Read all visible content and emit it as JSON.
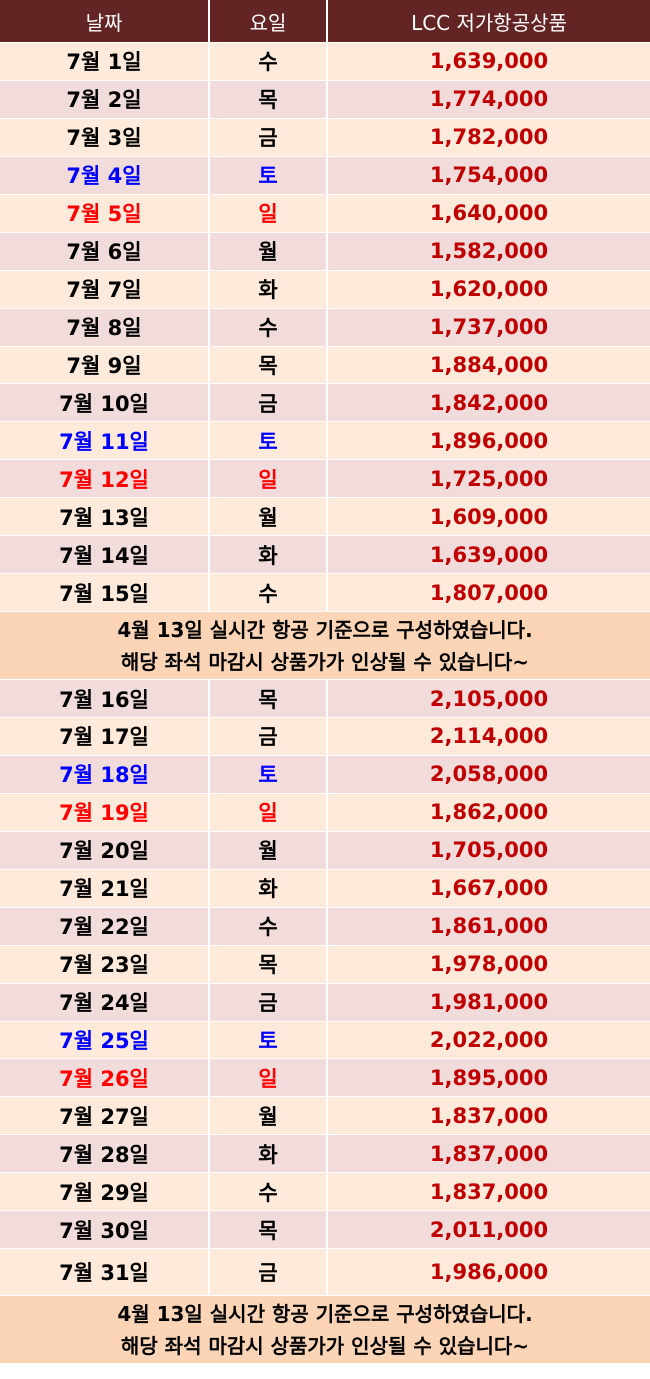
{
  "header": {
    "date": "날짜",
    "weekday": "요일",
    "price": "LCC 저가항공상품"
  },
  "colors": {
    "header_bg": "#632523",
    "row_light": "#fdeada",
    "row_alt": "#f2dcdb",
    "note_bg": "#fbd5b5",
    "price": "#c00000",
    "saturday": "#0000ff",
    "sunday": "#ff0000"
  },
  "note": {
    "line1": "4월 13일 실시간 항공 기준으로 구성하였습니다.",
    "line2": "해당 좌석 마감시 상품가가 인상될 수 있습니다~"
  },
  "rows": [
    {
      "date": "7월 1일",
      "day": "수",
      "price": "1,639,000"
    },
    {
      "date": "7월 2일",
      "day": "목",
      "price": "1,774,000"
    },
    {
      "date": "7월 3일",
      "day": "금",
      "price": "1,782,000"
    },
    {
      "date": "7월 4일",
      "day": "토",
      "price": "1,754,000"
    },
    {
      "date": "7월 5일",
      "day": "일",
      "price": "1,640,000"
    },
    {
      "date": "7월 6일",
      "day": "월",
      "price": "1,582,000"
    },
    {
      "date": "7월 7일",
      "day": "화",
      "price": "1,620,000"
    },
    {
      "date": "7월 8일",
      "day": "수",
      "price": "1,737,000"
    },
    {
      "date": "7월 9일",
      "day": "목",
      "price": "1,884,000"
    },
    {
      "date": "7월 10일",
      "day": "금",
      "price": "1,842,000"
    },
    {
      "date": "7월 11일",
      "day": "토",
      "price": "1,896,000"
    },
    {
      "date": "7월 12일",
      "day": "일",
      "price": "1,725,000"
    },
    {
      "date": "7월 13일",
      "day": "월",
      "price": "1,609,000"
    },
    {
      "date": "7월 14일",
      "day": "화",
      "price": "1,639,000"
    },
    {
      "date": "7월 15일",
      "day": "수",
      "price": "1,807,000"
    },
    {
      "date": "7월 16일",
      "day": "목",
      "price": "2,105,000"
    },
    {
      "date": "7월 17일",
      "day": "금",
      "price": "2,114,000"
    },
    {
      "date": "7월 18일",
      "day": "토",
      "price": "2,058,000"
    },
    {
      "date": "7월 19일",
      "day": "일",
      "price": "1,862,000"
    },
    {
      "date": "7월 20일",
      "day": "월",
      "price": "1,705,000"
    },
    {
      "date": "7월 21일",
      "day": "화",
      "price": "1,667,000"
    },
    {
      "date": "7월 22일",
      "day": "수",
      "price": "1,861,000"
    },
    {
      "date": "7월 23일",
      "day": "목",
      "price": "1,978,000"
    },
    {
      "date": "7월 24일",
      "day": "금",
      "price": "1,981,000"
    },
    {
      "date": "7월 25일",
      "day": "토",
      "price": "2,022,000"
    },
    {
      "date": "7월 26일",
      "day": "일",
      "price": "1,895,000"
    },
    {
      "date": "7월 27일",
      "day": "월",
      "price": "1,837,000"
    },
    {
      "date": "7월 28일",
      "day": "화",
      "price": "1,837,000"
    },
    {
      "date": "7월 29일",
      "day": "수",
      "price": "1,837,000"
    },
    {
      "date": "7월 30일",
      "day": "목",
      "price": "2,011,000"
    },
    {
      "date": "7월 31일",
      "day": "금",
      "price": "1,986,000"
    }
  ]
}
